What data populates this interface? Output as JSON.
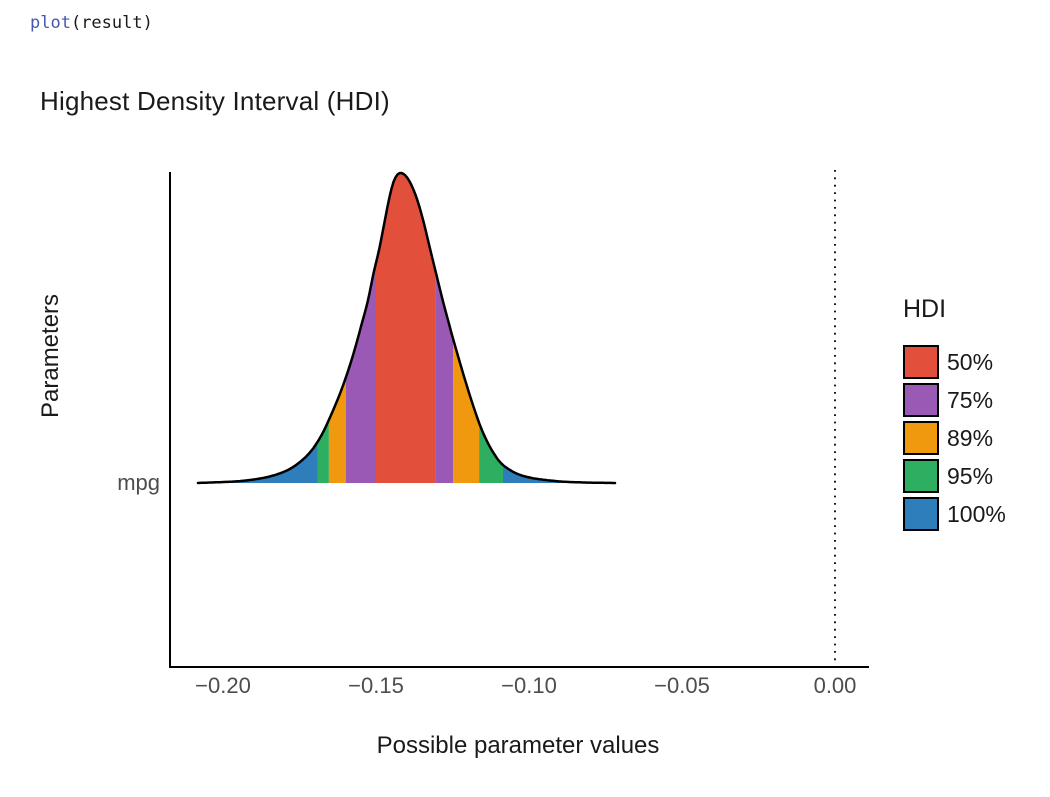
{
  "code": {
    "function": "plot",
    "arguments": "(result)"
  },
  "colors": {
    "text": "#1a1a1a",
    "axis_text": "#4d4d4d",
    "code_function": "#4758AB",
    "curve_outline": "#000000"
  },
  "chart_data": {
    "type": "area",
    "title": "Highest Density Interval (HDI)",
    "xlabel": "Possible parameter values",
    "ylabel": "Parameters",
    "y_category": "mpg",
    "x_tick_labels": [
      "−0.20",
      "−0.15",
      "−0.10",
      "−0.05",
      "0.00"
    ],
    "x_tick_values": [
      -0.2,
      -0.15,
      -0.1,
      -0.05,
      0.0
    ],
    "x_axis_range": [
      -0.217,
      0.011
    ],
    "reference_line_x": 0,
    "grid": false,
    "legend_position": "right",
    "legend": {
      "title": "HDI",
      "items": [
        {
          "label": "50%",
          "color": "#E2503C"
        },
        {
          "label": "75%",
          "color": "#9B59B6"
        },
        {
          "label": "89%",
          "color": "#F1990E"
        },
        {
          "label": "95%",
          "color": "#2EAE60"
        },
        {
          "label": "100%",
          "color": "#2E7EBC"
        }
      ]
    },
    "hdi_intervals": [
      {
        "ci": "50%",
        "from": -0.15,
        "to": -0.131
      },
      {
        "ci": "75%",
        "from": -0.16,
        "to": -0.125
      },
      {
        "ci": "89%",
        "from": -0.165,
        "to": -0.116
      },
      {
        "ci": "95%",
        "from": -0.169,
        "to": -0.109
      },
      {
        "ci": "100%",
        "from": -0.208,
        "to": -0.072
      }
    ],
    "segments": [
      {
        "level": "100%",
        "from": -0.2082,
        "to": -0.169
      },
      {
        "level": "95%",
        "from": -0.169,
        "to": -0.1654
      },
      {
        "level": "89%",
        "from": -0.1654,
        "to": -0.1598
      },
      {
        "level": "75%",
        "from": -0.1598,
        "to": -0.15
      },
      {
        "level": "50%",
        "from": -0.15,
        "to": -0.1307
      },
      {
        "level": "75%",
        "from": -0.1307,
        "to": -0.1248
      },
      {
        "level": "89%",
        "from": -0.1248,
        "to": -0.1163
      },
      {
        "level": "95%",
        "from": -0.1163,
        "to": -0.1085
      },
      {
        "level": "100%",
        "from": -0.1085,
        "to": -0.0719
      }
    ],
    "density_curve": {
      "x": [
        -0.2082,
        -0.203,
        -0.1961,
        -0.1895,
        -0.184,
        -0.1788,
        -0.1748,
        -0.1709,
        -0.1676,
        -0.1644,
        -0.1611,
        -0.1578,
        -0.1552,
        -0.1526,
        -0.1507,
        -0.149,
        -0.1474,
        -0.1458,
        -0.1444,
        -0.1431,
        -0.1418,
        -0.1402,
        -0.1386,
        -0.1366,
        -0.1346,
        -0.1324,
        -0.1301,
        -0.1278,
        -0.1255,
        -0.1232,
        -0.1206,
        -0.118,
        -0.1154,
        -0.1124,
        -0.1095,
        -0.1062,
        -0.1029,
        -0.099,
        -0.0948,
        -0.0899,
        -0.0833,
        -0.0719
      ],
      "density": [
        0.0,
        0.002,
        0.005,
        0.012,
        0.023,
        0.042,
        0.068,
        0.107,
        0.158,
        0.226,
        0.306,
        0.403,
        0.494,
        0.59,
        0.681,
        0.752,
        0.832,
        0.913,
        0.968,
        0.994,
        1.0,
        0.99,
        0.965,
        0.916,
        0.848,
        0.758,
        0.665,
        0.574,
        0.49,
        0.41,
        0.323,
        0.242,
        0.171,
        0.11,
        0.068,
        0.042,
        0.026,
        0.016,
        0.01,
        0.005,
        0.002,
        0.0
      ]
    }
  }
}
